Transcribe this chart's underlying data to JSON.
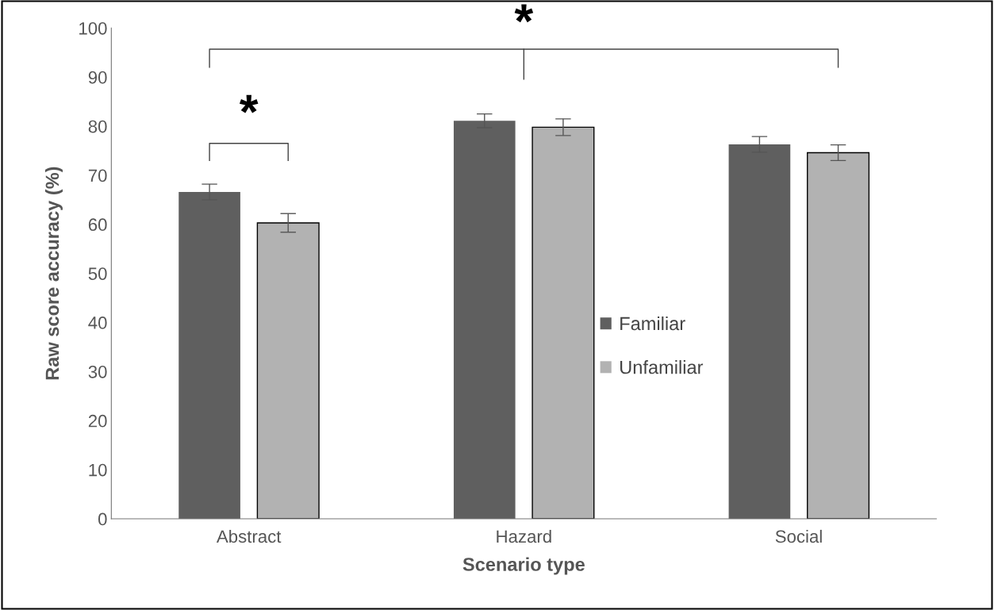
{
  "chart_data": {
    "type": "bar",
    "xlabel": "Scenario type",
    "ylabel": "Raw score accuracy (%)",
    "categories": [
      "Abstract",
      "Hazard",
      "Social"
    ],
    "series": [
      {
        "name": "Familiar",
        "color": "#5f5f5f",
        "values": [
          66.6,
          81.1,
          76.3
        ],
        "errors": [
          1.6,
          1.4,
          1.6
        ]
      },
      {
        "name": "Unfamiliar",
        "color": "#b2b2b2",
        "values": [
          60.3,
          79.8,
          74.6
        ],
        "errors": [
          1.9,
          1.7,
          1.6
        ]
      }
    ],
    "ylim": [
      0,
      100
    ],
    "yticks": [
      0,
      10,
      20,
      30,
      40,
      50,
      60,
      70,
      80,
      90,
      100
    ],
    "grid": false,
    "legend": "center",
    "annotations": [
      "*",
      "*"
    ]
  }
}
